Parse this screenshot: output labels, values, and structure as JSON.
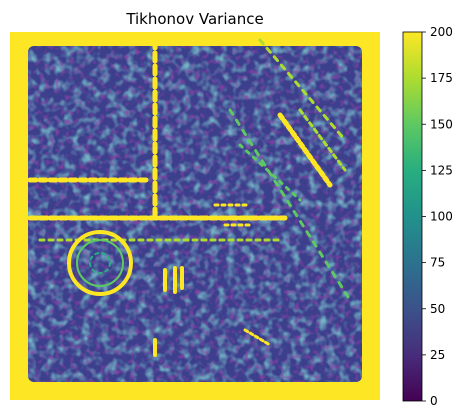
{
  "chart_data": {
    "type": "heatmap",
    "title": "Tikhonov Variance",
    "colormap": "viridis",
    "colorbar": {
      "min": 0,
      "max": 200,
      "ticks": [
        0,
        25,
        50,
        75,
        100,
        125,
        150,
        175,
        200
      ],
      "tick_labels": [
        "0",
        "25",
        "50",
        "75",
        "100",
        "125",
        "150",
        "175",
        "200"
      ]
    },
    "axes_visible": false,
    "background_level": 40,
    "border_level": 200
  }
}
